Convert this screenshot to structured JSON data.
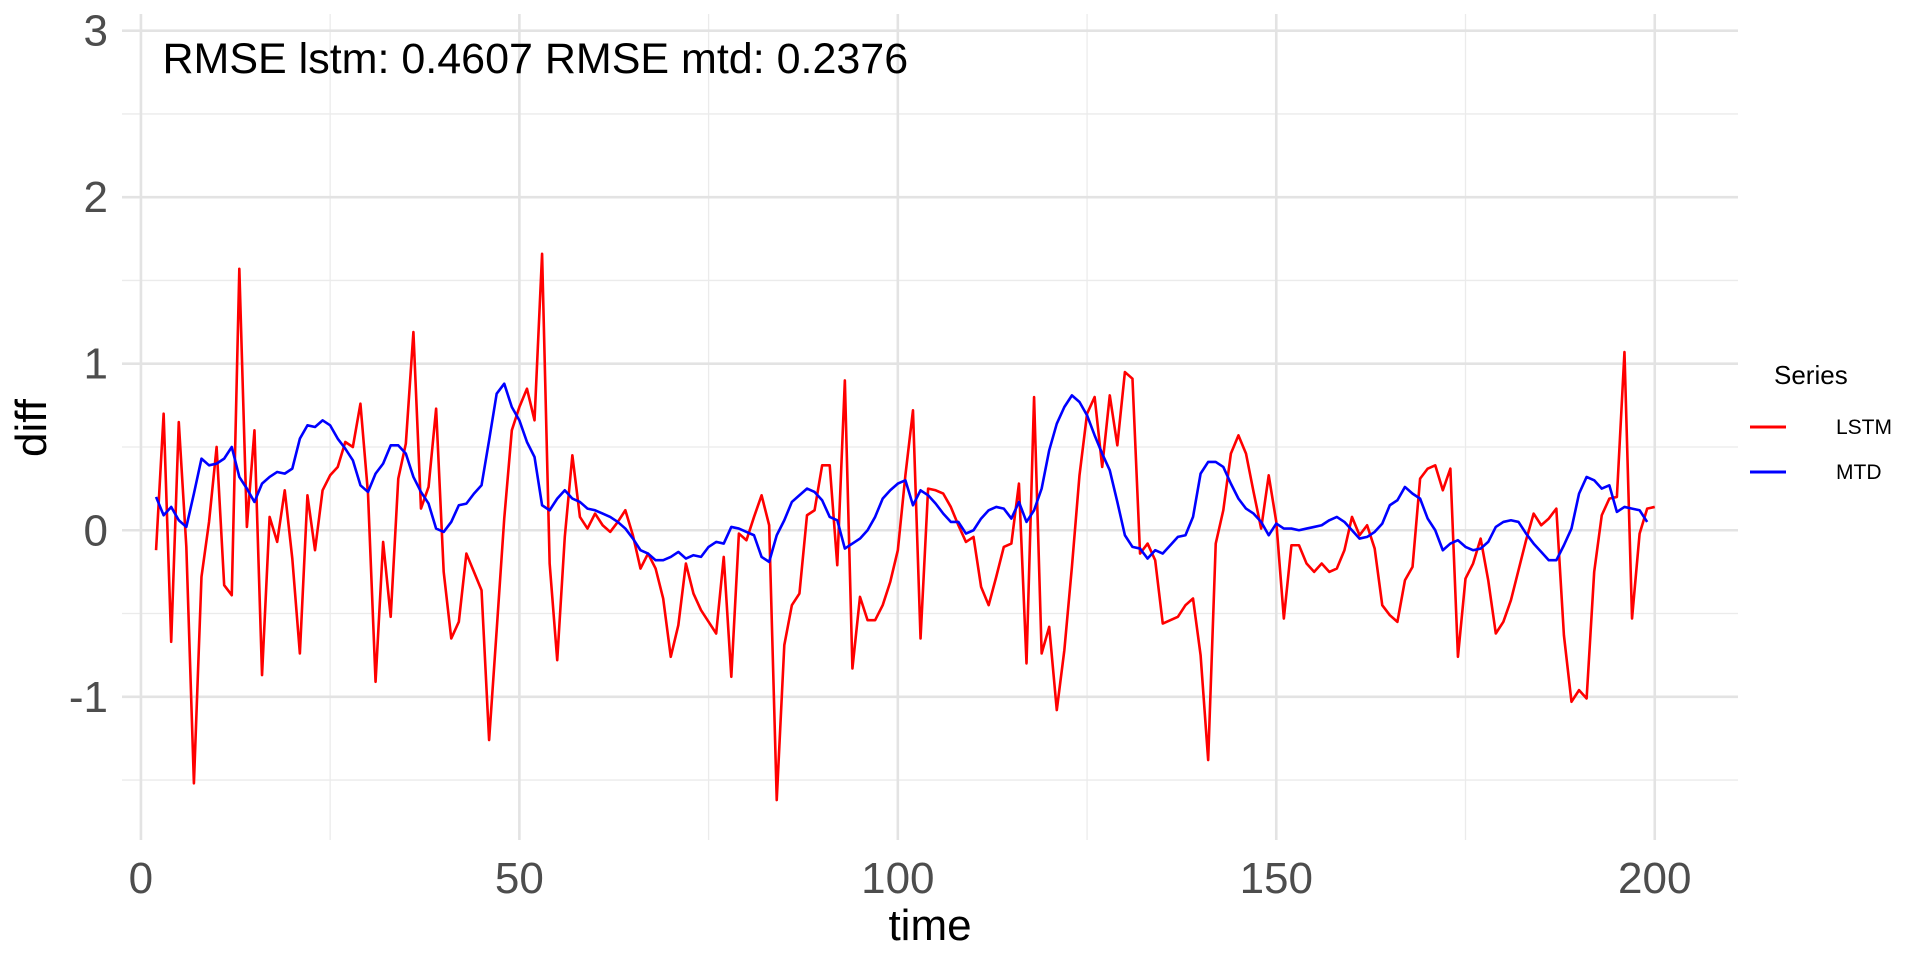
{
  "chart_data": {
    "type": "line",
    "title": "",
    "xlabel": "time",
    "ylabel": "diff",
    "xlim": [
      -2.5,
      211
    ],
    "ylim": [
      -1.86,
      3.1
    ],
    "x_ticks": [
      0,
      50,
      100,
      150,
      200
    ],
    "x_tick_labels": [
      "0",
      "50",
      "100",
      "150",
      "200"
    ],
    "y_ticks": [
      -1,
      0,
      1,
      2,
      3
    ],
    "y_tick_labels": [
      "-1",
      "0",
      "1",
      "2",
      "3"
    ],
    "grid": true,
    "legend": {
      "title": "Series",
      "position": "right",
      "entries": [
        {
          "label": "LSTM",
          "color": "#ff0000"
        },
        {
          "label": "MTD",
          "color": "#0000ff"
        }
      ]
    },
    "annotation": {
      "text": "RMSE lstm: 0.4607 RMSE mtd: 0.2376",
      "x": 1,
      "y": 2.83
    },
    "series": [
      {
        "name": "LSTM",
        "color": "#ff0000",
        "x_start": 2,
        "values": [
          -0.12,
          0.7,
          -0.67,
          0.65,
          -0.1,
          -1.52,
          -0.28,
          0.05,
          0.5,
          -0.33,
          -0.39,
          1.57,
          0.02,
          0.6,
          -0.87,
          0.08,
          -0.07,
          0.24,
          -0.17,
          -0.74,
          0.21,
          -0.12,
          0.24,
          0.33,
          0.38,
          0.53,
          0.5,
          0.76,
          0.22,
          -0.91,
          -0.07,
          -0.52,
          0.31,
          0.52,
          1.19,
          0.13,
          0.26,
          0.73,
          -0.25,
          -0.65,
          -0.55,
          -0.14,
          -0.25,
          -0.36,
          -1.26,
          -0.6,
          0.07,
          0.6,
          0.74,
          0.85,
          0.66,
          1.66,
          -0.2,
          -0.78,
          -0.04,
          0.45,
          0.08,
          0.01,
          0.1,
          0.03,
          -0.01,
          0.05,
          0.12,
          -0.03,
          -0.23,
          -0.14,
          -0.23,
          -0.41,
          -0.76,
          -0.57,
          -0.2,
          -0.38,
          -0.48,
          -0.55,
          -0.62,
          -0.16,
          -0.88,
          -0.02,
          -0.06,
          0.08,
          0.21,
          0.03,
          -1.62,
          -0.69,
          -0.45,
          -0.38,
          0.09,
          0.12,
          0.39,
          0.39,
          -0.21,
          0.9,
          -0.83,
          -0.4,
          -0.54,
          -0.54,
          -0.45,
          -0.31,
          -0.12,
          0.33,
          0.72,
          -0.65,
          0.25,
          0.24,
          0.22,
          0.14,
          0.03,
          -0.07,
          -0.04,
          -0.34,
          -0.45,
          -0.28,
          -0.1,
          -0.08,
          0.28,
          -0.8,
          0.8,
          -0.74,
          -0.58,
          -1.08,
          -0.72,
          -0.22,
          0.33,
          0.7,
          0.8,
          0.38,
          0.81,
          0.51,
          0.95,
          0.91,
          -0.14,
          -0.08,
          -0.18,
          -0.56,
          -0.54,
          -0.52,
          -0.45,
          -0.41,
          -0.75,
          -1.38,
          -0.08,
          0.12,
          0.46,
          0.57,
          0.46,
          0.23,
          0.01,
          0.33,
          0.05,
          -0.53,
          -0.09,
          -0.09,
          -0.2,
          -0.25,
          -0.2,
          -0.25,
          -0.23,
          -0.12,
          0.08,
          -0.03,
          0.03,
          -0.11,
          -0.45,
          -0.51,
          -0.55,
          -0.3,
          -0.22,
          0.31,
          0.37,
          0.39,
          0.24,
          0.37,
          -0.76,
          -0.29,
          -0.2,
          -0.05,
          -0.3,
          -0.62,
          -0.55,
          -0.42,
          -0.24,
          -0.06,
          0.1,
          0.03,
          0.07,
          0.13,
          -0.63,
          -1.03,
          -0.96,
          -1.01,
          -0.25,
          0.09,
          0.19,
          0.2,
          1.07,
          -0.53,
          -0.02,
          0.13,
          0.14
        ]
      },
      {
        "name": "MTD",
        "color": "#0000ff",
        "x_start": 2,
        "values": [
          0.2,
          0.09,
          0.14,
          0.06,
          0.02,
          0.22,
          0.43,
          0.39,
          0.4,
          0.43,
          0.5,
          0.32,
          0.25,
          0.17,
          0.28,
          0.32,
          0.35,
          0.34,
          0.37,
          0.55,
          0.63,
          0.62,
          0.66,
          0.63,
          0.55,
          0.49,
          0.42,
          0.27,
          0.23,
          0.34,
          0.4,
          0.51,
          0.51,
          0.46,
          0.32,
          0.23,
          0.16,
          0.01,
          -0.01,
          0.05,
          0.15,
          0.16,
          0.22,
          0.27,
          0.54,
          0.82,
          0.88,
          0.74,
          0.66,
          0.53,
          0.44,
          0.15,
          0.12,
          0.19,
          0.24,
          0.19,
          0.17,
          0.13,
          0.12,
          0.1,
          0.08,
          0.05,
          0.01,
          -0.05,
          -0.12,
          -0.14,
          -0.18,
          -0.18,
          -0.16,
          -0.13,
          -0.17,
          -0.15,
          -0.16,
          -0.1,
          -0.07,
          -0.08,
          0.02,
          0.01,
          -0.01,
          -0.03,
          -0.16,
          -0.19,
          -0.03,
          0.06,
          0.17,
          0.21,
          0.25,
          0.23,
          0.18,
          0.08,
          0.06,
          -0.11,
          -0.08,
          -0.05,
          0.0,
          0.08,
          0.19,
          0.24,
          0.28,
          0.3,
          0.15,
          0.24,
          0.21,
          0.16,
          0.1,
          0.05,
          0.05,
          -0.02,
          0.0,
          0.07,
          0.12,
          0.14,
          0.13,
          0.07,
          0.17,
          0.05,
          0.12,
          0.25,
          0.48,
          0.64,
          0.74,
          0.81,
          0.77,
          0.69,
          0.57,
          0.46,
          0.36,
          0.17,
          -0.03,
          -0.1,
          -0.11,
          -0.17,
          -0.12,
          -0.14,
          -0.09,
          -0.04,
          -0.03,
          0.08,
          0.34,
          0.41,
          0.41,
          0.38,
          0.28,
          0.19,
          0.13,
          0.1,
          0.05,
          -0.03,
          0.04,
          0.01,
          0.01,
          0.0,
          0.01,
          0.02,
          0.03,
          0.06,
          0.08,
          0.05,
          0.0,
          -0.05,
          -0.04,
          -0.01,
          0.04,
          0.15,
          0.18,
          0.26,
          0.22,
          0.19,
          0.07,
          0.0,
          -0.12,
          -0.08,
          -0.06,
          -0.1,
          -0.12,
          -0.11,
          -0.07,
          0.02,
          0.05,
          0.06,
          0.05,
          -0.02,
          -0.08,
          -0.13,
          -0.18,
          -0.18,
          -0.09,
          0.01,
          0.22,
          0.32,
          0.3,
          0.25,
          0.27,
          0.11,
          0.14,
          0.13,
          0.12,
          0.05
        ]
      }
    ]
  }
}
